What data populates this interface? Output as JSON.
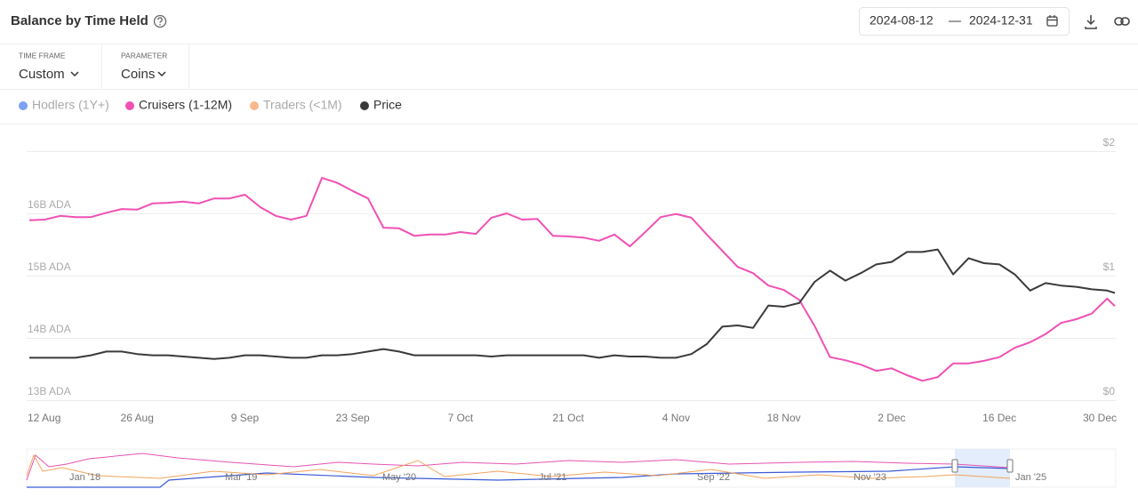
{
  "header": {
    "title": "Balance by Time Held",
    "date_from": "2024-08-12",
    "date_separator": "—",
    "date_to": "2024-12-31"
  },
  "controls": [
    {
      "label": "TIME FRAME",
      "value": "Custom"
    },
    {
      "label": "PARAMETER",
      "value": "Coins"
    }
  ],
  "navigator": {
    "labels": [
      "Jan '18",
      "Mar '19",
      "May '20",
      "Jul '21",
      "Sep '22",
      "Nov '23",
      "Jan '25"
    ]
  },
  "chart_data": {
    "type": "line",
    "x": [
      "2024-08-12",
      "2024-08-14",
      "2024-08-16",
      "2024-08-18",
      "2024-08-20",
      "2024-08-22",
      "2024-08-24",
      "2024-08-26",
      "2024-08-28",
      "2024-08-30",
      "2024-09-01",
      "2024-09-03",
      "2024-09-05",
      "2024-09-07",
      "2024-09-09",
      "2024-09-11",
      "2024-09-13",
      "2024-09-15",
      "2024-09-17",
      "2024-09-19",
      "2024-09-21",
      "2024-09-23",
      "2024-09-25",
      "2024-09-27",
      "2024-09-29",
      "2024-10-01",
      "2024-10-03",
      "2024-10-05",
      "2024-10-07",
      "2024-10-09",
      "2024-10-11",
      "2024-10-13",
      "2024-10-15",
      "2024-10-17",
      "2024-10-19",
      "2024-10-21",
      "2024-10-23",
      "2024-10-25",
      "2024-10-27",
      "2024-10-29",
      "2024-10-31",
      "2024-11-02",
      "2024-11-04",
      "2024-11-06",
      "2024-11-08",
      "2024-11-10",
      "2024-11-12",
      "2024-11-14",
      "2024-11-16",
      "2024-11-18",
      "2024-11-20",
      "2024-11-22",
      "2024-11-24",
      "2024-11-26",
      "2024-11-28",
      "2024-11-30",
      "2024-12-02",
      "2024-12-04",
      "2024-12-06",
      "2024-12-08",
      "2024-12-10",
      "2024-12-12",
      "2024-12-14",
      "2024-12-16",
      "2024-12-18",
      "2024-12-20",
      "2024-12-22",
      "2024-12-24",
      "2024-12-26",
      "2024-12-28",
      "2024-12-30",
      "2024-12-31"
    ],
    "series": [
      {
        "name": "Hodlers (1Y+)",
        "color": "#7da0f5",
        "visible": false
      },
      {
        "name": "Cruisers (1-12M)",
        "color": "#f050b4",
        "visible": true,
        "axis": "y",
        "values": [
          15.89,
          15.9,
          15.96,
          15.94,
          15.94,
          16.01,
          16.07,
          16.06,
          16.16,
          16.17,
          16.19,
          16.16,
          16.24,
          16.24,
          16.3,
          16.1,
          15.96,
          15.9,
          15.96,
          16.57,
          16.49,
          16.36,
          16.24,
          15.77,
          15.76,
          15.64,
          15.66,
          15.66,
          15.7,
          15.67,
          15.93,
          16.0,
          15.9,
          15.91,
          15.64,
          15.63,
          15.61,
          15.56,
          15.66,
          15.47,
          15.7,
          15.94,
          15.99,
          15.93,
          15.66,
          15.4,
          15.14,
          15.04,
          14.84,
          14.77,
          14.61,
          14.19,
          13.69,
          13.64,
          13.57,
          13.47,
          13.51,
          13.4,
          13.31,
          13.37,
          13.59,
          13.59,
          13.63,
          13.69,
          13.84,
          13.93,
          14.06,
          14.24,
          14.3,
          14.39,
          14.63,
          14.51
        ]
      },
      {
        "name": "Traders (<1M)",
        "color": "#f9b98c",
        "visible": false
      },
      {
        "name": "Price",
        "color": "#3a3a3a",
        "visible": true,
        "axis": "y2",
        "values": [
          0.34,
          0.34,
          0.34,
          0.34,
          0.36,
          0.39,
          0.39,
          0.37,
          0.36,
          0.36,
          0.35,
          0.34,
          0.33,
          0.34,
          0.36,
          0.36,
          0.35,
          0.34,
          0.34,
          0.36,
          0.36,
          0.37,
          0.39,
          0.41,
          0.39,
          0.36,
          0.36,
          0.36,
          0.36,
          0.36,
          0.35,
          0.36,
          0.36,
          0.36,
          0.36,
          0.36,
          0.36,
          0.34,
          0.36,
          0.35,
          0.35,
          0.34,
          0.34,
          0.37,
          0.45,
          0.59,
          0.6,
          0.58,
          0.76,
          0.75,
          0.78,
          0.95,
          1.04,
          0.96,
          1.02,
          1.09,
          1.11,
          1.19,
          1.19,
          1.21,
          1.01,
          1.14,
          1.1,
          1.09,
          1.01,
          0.88,
          0.94,
          0.92,
          0.91,
          0.89,
          0.88,
          0.86
        ]
      }
    ],
    "xlim": [
      "2024-08-12",
      "2024-12-31"
    ],
    "xticks": [
      {
        "value": "2024-08-12",
        "label": "12 Aug"
      },
      {
        "value": "2024-08-26",
        "label": "26 Aug"
      },
      {
        "value": "2024-09-09",
        "label": "9 Sep"
      },
      {
        "value": "2024-09-23",
        "label": "23 Sep"
      },
      {
        "value": "2024-10-07",
        "label": "7 Oct"
      },
      {
        "value": "2024-10-21",
        "label": "21 Oct"
      },
      {
        "value": "2024-11-04",
        "label": "4 Nov"
      },
      {
        "value": "2024-11-18",
        "label": "18 Nov"
      },
      {
        "value": "2024-12-02",
        "label": "2 Dec"
      },
      {
        "value": "2024-12-16",
        "label": "16 Dec"
      },
      {
        "value": "2024-12-30",
        "label": "30 Dec"
      }
    ],
    "ylim": [
      13,
      17
    ],
    "yticks": [
      {
        "value": 13,
        "label": "13B ADA"
      },
      {
        "value": 14,
        "label": "14B ADA"
      },
      {
        "value": 15,
        "label": "15B ADA"
      },
      {
        "value": 16,
        "label": "16B ADA"
      }
    ],
    "y2lim": [
      0,
      2
    ],
    "y2ticks": [
      {
        "value": 0,
        "label": "$0"
      },
      {
        "value": 1,
        "label": "$1"
      },
      {
        "value": 2,
        "label": "$2"
      }
    ],
    "grid": true
  }
}
